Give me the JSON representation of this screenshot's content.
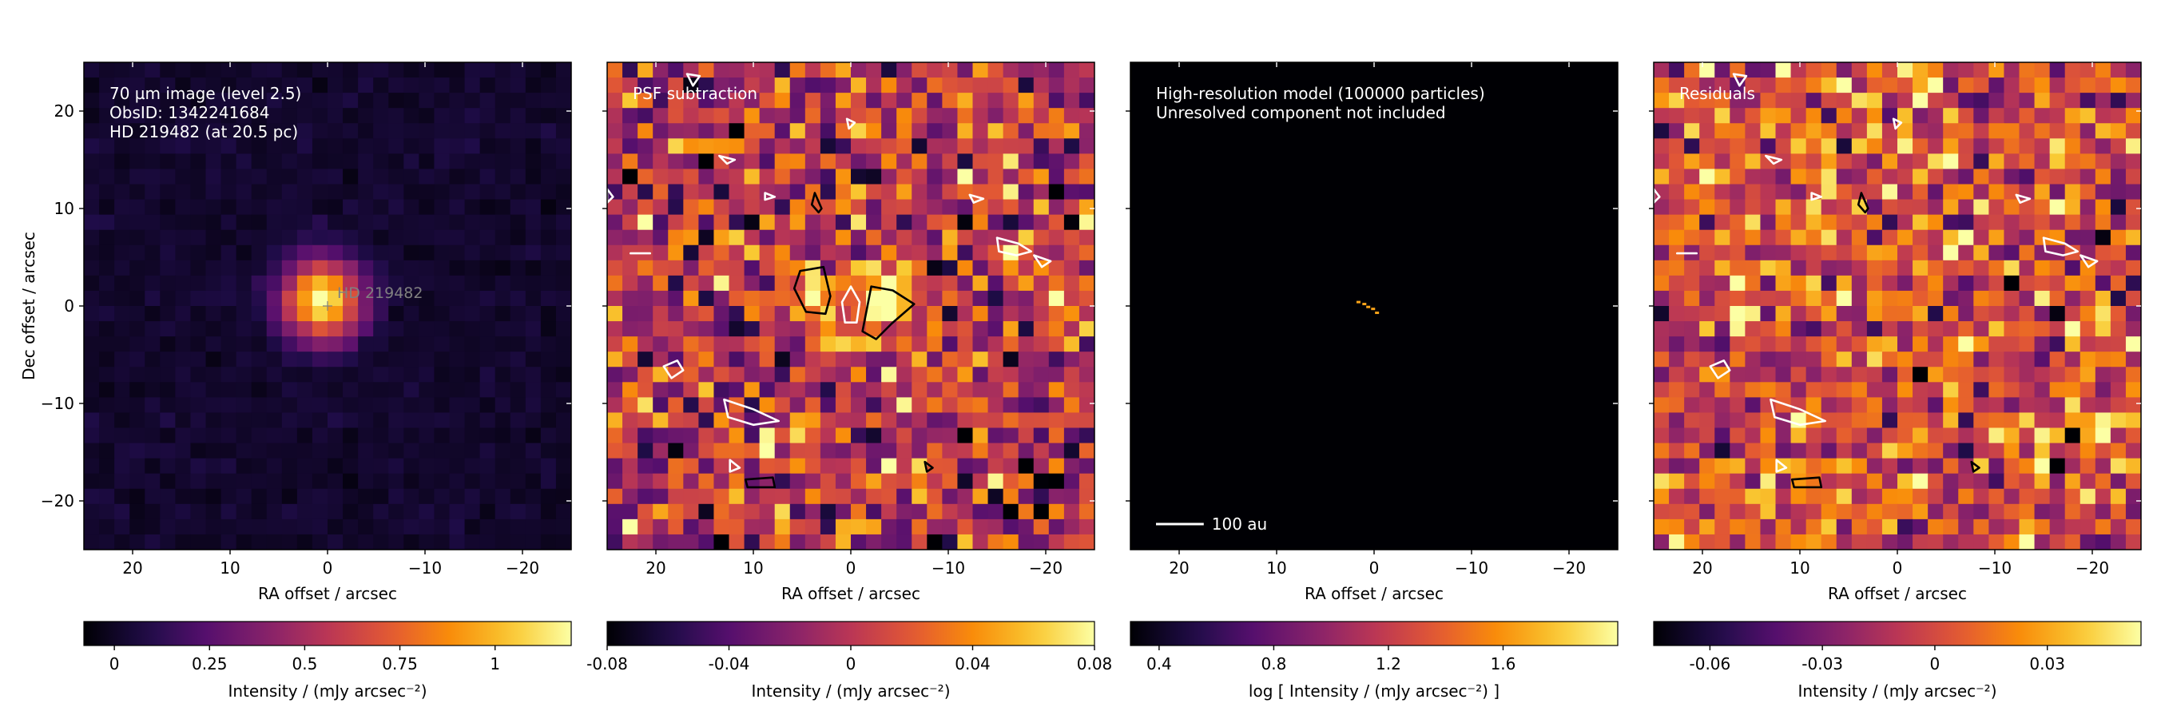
{
  "figure": {
    "background": "#ffffff",
    "colormap": "inferno",
    "colors": {
      "axis": "#000000",
      "annotation_text": "#ffffff",
      "star_label": "#808080"
    }
  },
  "chart_data": [
    {
      "type": "heatmap",
      "panel": "observation",
      "annotation_lines": [
        "70 µm image (level 2.5)",
        "ObsID: 1342241684",
        "HD 219482 (at 20.5 pc)"
      ],
      "star_marker": {
        "label": "HD 219482",
        "x": 0,
        "y": 0
      },
      "xlabel": "RA offset / arcsec",
      "ylabel": "Dec offset / arcsec",
      "xlim": [
        25,
        -25
      ],
      "ylim": [
        -25,
        25
      ],
      "xticks": [
        20,
        10,
        0,
        -10,
        -20
      ],
      "xtick_labels": [
        "20",
        "10",
        "0",
        "−10",
        "−20"
      ],
      "yticks": [
        20,
        10,
        0,
        -10,
        -20
      ],
      "ytick_labels": [
        "20",
        "10",
        "0",
        "−10",
        "−20"
      ],
      "grid": false,
      "pixel_size_arcsec": 1.6,
      "image_model": {
        "kind": "psf_gaussian",
        "peak": 1.15,
        "sigma_arcsec": 2.9,
        "noise": 0.025,
        "background": 0.02
      },
      "colorbar": {
        "orientation": "horizontal",
        "min": -0.08,
        "max": 1.2,
        "ticks": [
          0,
          0.25,
          0.5,
          0.75,
          1
        ],
        "tick_labels": [
          "0",
          "0.25",
          "0.5",
          "0.75",
          "1"
        ],
        "label": "Intensity / (mJy arcsec⁻²)"
      }
    },
    {
      "type": "heatmap",
      "panel": "psf_subtraction",
      "annotation_lines": [
        "PSF subtraction"
      ],
      "xlabel": "RA offset / arcsec",
      "xlim": [
        25,
        -25
      ],
      "ylim": [
        -25,
        25
      ],
      "xticks": [
        20,
        10,
        0,
        -10,
        -20
      ],
      "xtick_labels": [
        "20",
        "10",
        "0",
        "−10",
        "−20"
      ],
      "yticks": [
        20,
        10,
        0,
        -10,
        -20
      ],
      "grid": false,
      "pixel_size_arcsec": 1.6,
      "image_model": {
        "kind": "noise",
        "sigma": 0.032,
        "mean": 0.0,
        "bright_blobs": [
          {
            "x": 3,
            "y": 1,
            "amp": 0.09,
            "r": 2.2
          },
          {
            "x": -3.5,
            "y": -0.5,
            "amp": 0.09,
            "r": 2.4
          }
        ],
        "dark_hole": {
          "x": 0,
          "y": 0,
          "amp": -0.09,
          "r": 1.1
        }
      },
      "contours": [
        {
          "level": "positive",
          "color": "#000000",
          "points": [
            [
              5.2,
              3.6
            ],
            [
              2.8,
              4.0
            ],
            [
              2.1,
              1.0
            ],
            [
              2.6,
              -0.8
            ],
            [
              4.6,
              -0.6
            ],
            [
              5.8,
              1.8
            ]
          ]
        },
        {
          "level": "positive",
          "color": "#000000",
          "points": [
            [
              -2.1,
              2.0
            ],
            [
              -4.3,
              1.6
            ],
            [
              -6.5,
              0.2
            ],
            [
              -4.2,
              -1.8
            ],
            [
              -2.6,
              -3.4
            ],
            [
              -1.2,
              -2.6
            ]
          ]
        },
        {
          "level": "negative",
          "color": "#ffffff",
          "points": [
            [
              0.0,
              2.0
            ],
            [
              0.9,
              0.4
            ],
            [
              0.6,
              -1.7
            ],
            [
              -0.6,
              -1.7
            ],
            [
              -0.9,
              0.4
            ]
          ]
        },
        {
          "level": "negative",
          "color": "#ffffff",
          "points": [
            [
              16.8,
              23.8
            ],
            [
              15.5,
              23.6
            ],
            [
              16.2,
              22.6
            ]
          ]
        },
        {
          "level": "negative",
          "color": "#ffffff",
          "points": [
            [
              -15.0,
              7.0
            ],
            [
              -17.2,
              6.4
            ],
            [
              -18.5,
              5.6
            ],
            [
              -17.0,
              5.2
            ],
            [
              -15.2,
              5.6
            ]
          ]
        },
        {
          "level": "negative",
          "color": "#ffffff",
          "points": [
            [
              -18.8,
              5.2
            ],
            [
              -20.5,
              4.6
            ],
            [
              -19.6,
              4.0
            ]
          ]
        },
        {
          "level": "negative",
          "color": "#ffffff",
          "points": [
            [
              13.0,
              -9.6
            ],
            [
              10.0,
              -10.6
            ],
            [
              7.4,
              -11.8
            ],
            [
              10.0,
              -12.2
            ],
            [
              12.6,
              -11.4
            ]
          ]
        },
        {
          "level": "negative",
          "color": "#ffffff",
          "points": [
            [
              19.2,
              -6.2
            ],
            [
              17.8,
              -5.6
            ],
            [
              17.2,
              -6.6
            ],
            [
              18.4,
              -7.4
            ]
          ]
        },
        {
          "level": "positive",
          "color": "#000000",
          "points": [
            [
              10.8,
              -17.8
            ],
            [
              8.0,
              -17.6
            ],
            [
              7.8,
              -18.6
            ],
            [
              10.6,
              -18.6
            ]
          ]
        },
        {
          "level": "positive",
          "color": "#000000",
          "points": [
            [
              3.7,
              11.6
            ],
            [
              3.0,
              10.0
            ],
            [
              3.3,
              9.6
            ],
            [
              4.0,
              10.4
            ]
          ]
        },
        {
          "level": "negative",
          "color": "#ffffff",
          "points": [
            [
              13.5,
              15.4
            ],
            [
              11.9,
              15.0
            ],
            [
              12.7,
              14.6
            ]
          ]
        },
        {
          "level": "negative",
          "color": "#ffffff",
          "points": [
            [
              0.4,
              19.2
            ],
            [
              -0.4,
              18.8
            ],
            [
              0.2,
              18.2
            ]
          ]
        },
        {
          "level": "negative",
          "color": "#ffffff",
          "points": [
            [
              8.8,
              11.6
            ],
            [
              7.8,
              11.2
            ],
            [
              8.8,
              10.9
            ]
          ]
        },
        {
          "level": "negative",
          "color": "#ffffff",
          "points": [
            [
              -12.2,
              11.4
            ],
            [
              -13.6,
              11.0
            ],
            [
              -12.6,
              10.6
            ]
          ]
        },
        {
          "level": "negative",
          "color": "#ffffff",
          "points": [
            [
              22.6,
              5.4
            ],
            [
              20.6,
              5.4
            ]
          ]
        },
        {
          "level": "negative",
          "color": "#ffffff",
          "points": [
            [
              25.0,
              12.0
            ],
            [
              24.4,
              11.2
            ],
            [
              25.0,
              10.6
            ]
          ]
        },
        {
          "level": "negative",
          "color": "#ffffff",
          "points": [
            [
              12.4,
              -15.8
            ],
            [
              11.4,
              -16.6
            ],
            [
              12.4,
              -17.0
            ]
          ]
        },
        {
          "level": "positive",
          "color": "#000000",
          "points": [
            [
              -7.6,
              -16.0
            ],
            [
              -8.4,
              -16.6
            ],
            [
              -7.8,
              -17.0
            ]
          ]
        }
      ],
      "colorbar": {
        "orientation": "horizontal",
        "min": -0.08,
        "max": 0.08,
        "ticks": [
          -0.08,
          -0.04,
          0,
          0.04,
          0.08
        ],
        "tick_labels": [
          "-0.08",
          "-0.04",
          "0",
          "0.04",
          "0.08"
        ],
        "label": "Intensity / (mJy arcsec⁻²)"
      }
    },
    {
      "type": "heatmap",
      "panel": "model",
      "annotation_lines": [
        "High-resolution model (100000 particles)",
        "Unresolved component not included"
      ],
      "scale_bar": {
        "label": "100 au",
        "length_arcsec": 4.9
      },
      "xlabel": "RA offset / arcsec",
      "xlim": [
        25,
        -25
      ],
      "ylim": [
        -25,
        25
      ],
      "xticks": [
        20,
        10,
        0,
        -10,
        -20
      ],
      "xtick_labels": [
        "20",
        "10",
        "0",
        "−10",
        "−20"
      ],
      "yticks": [
        20,
        10,
        0,
        -10,
        -20
      ],
      "grid": false,
      "model_emission": [
        {
          "x": 1.6,
          "y": 0.4
        },
        {
          "x": 1.0,
          "y": 0.2
        },
        {
          "x": 0.6,
          "y": -0.1
        },
        {
          "x": 0.1,
          "y": -0.3
        },
        {
          "x": -0.3,
          "y": -0.7
        }
      ],
      "colorbar": {
        "orientation": "horizontal",
        "min": 0.3,
        "max": 2.0,
        "ticks": [
          0.4,
          0.8,
          1.2,
          1.6
        ],
        "tick_labels": [
          "0.4",
          "0.8",
          "1.2",
          "1.6"
        ],
        "label": "log [ Intensity / (mJy arcsec⁻²) ]"
      }
    },
    {
      "type": "heatmap",
      "panel": "residuals",
      "annotation_lines": [
        "Residuals"
      ],
      "xlabel": "RA offset / arcsec",
      "xlim": [
        25,
        -25
      ],
      "ylim": [
        -25,
        25
      ],
      "xticks": [
        20,
        10,
        0,
        -10,
        -20
      ],
      "xtick_labels": [
        "20",
        "10",
        "0",
        "−10",
        "−20"
      ],
      "yticks": [
        20,
        10,
        0,
        -10,
        -20
      ],
      "grid": false,
      "pixel_size_arcsec": 1.6,
      "image_model": {
        "kind": "noise",
        "sigma": 0.026,
        "mean": 0.0
      },
      "contours": [
        {
          "level": "negative",
          "color": "#ffffff",
          "points": [
            [
              16.8,
              23.8
            ],
            [
              15.5,
              23.6
            ],
            [
              16.2,
              22.6
            ]
          ]
        },
        {
          "level": "negative",
          "color": "#ffffff",
          "points": [
            [
              -15.0,
              7.0
            ],
            [
              -17.2,
              6.4
            ],
            [
              -18.5,
              5.6
            ],
            [
              -17.0,
              5.2
            ],
            [
              -15.2,
              5.6
            ]
          ]
        },
        {
          "level": "negative",
          "color": "#ffffff",
          "points": [
            [
              -18.8,
              5.2
            ],
            [
              -20.5,
              4.6
            ],
            [
              -19.6,
              4.0
            ]
          ]
        },
        {
          "level": "negative",
          "color": "#ffffff",
          "points": [
            [
              13.0,
              -9.6
            ],
            [
              10.0,
              -10.6
            ],
            [
              7.4,
              -11.8
            ],
            [
              10.0,
              -12.2
            ],
            [
              12.6,
              -11.4
            ]
          ]
        },
        {
          "level": "negative",
          "color": "#ffffff",
          "points": [
            [
              19.2,
              -6.2
            ],
            [
              17.8,
              -5.6
            ],
            [
              17.2,
              -6.6
            ],
            [
              18.4,
              -7.4
            ]
          ]
        },
        {
          "level": "positive",
          "color": "#000000",
          "points": [
            [
              10.8,
              -17.8
            ],
            [
              8.0,
              -17.6
            ],
            [
              7.8,
              -18.6
            ],
            [
              10.6,
              -18.6
            ]
          ]
        },
        {
          "level": "positive",
          "color": "#000000",
          "points": [
            [
              3.7,
              11.6
            ],
            [
              3.0,
              10.0
            ],
            [
              3.3,
              9.6
            ],
            [
              4.0,
              10.4
            ]
          ]
        },
        {
          "level": "negative",
          "color": "#ffffff",
          "points": [
            [
              13.5,
              15.4
            ],
            [
              11.9,
              15.0
            ],
            [
              12.7,
              14.6
            ]
          ]
        },
        {
          "level": "negative",
          "color": "#ffffff",
          "points": [
            [
              0.4,
              19.2
            ],
            [
              -0.4,
              18.8
            ],
            [
              0.2,
              18.2
            ]
          ]
        },
        {
          "level": "negative",
          "color": "#ffffff",
          "points": [
            [
              8.8,
              11.6
            ],
            [
              7.8,
              11.2
            ],
            [
              8.8,
              10.9
            ]
          ]
        },
        {
          "level": "negative",
          "color": "#ffffff",
          "points": [
            [
              -12.2,
              11.4
            ],
            [
              -13.6,
              11.0
            ],
            [
              -12.6,
              10.6
            ]
          ]
        },
        {
          "level": "negative",
          "color": "#ffffff",
          "points": [
            [
              22.6,
              5.4
            ],
            [
              20.6,
              5.4
            ]
          ]
        },
        {
          "level": "negative",
          "color": "#ffffff",
          "points": [
            [
              25.0,
              12.0
            ],
            [
              24.4,
              11.2
            ],
            [
              25.0,
              10.6
            ]
          ]
        },
        {
          "level": "negative",
          "color": "#ffffff",
          "points": [
            [
              12.4,
              -15.8
            ],
            [
              11.4,
              -16.6
            ],
            [
              12.4,
              -17.0
            ]
          ]
        },
        {
          "level": "positive",
          "color": "#000000",
          "points": [
            [
              -7.6,
              -16.0
            ],
            [
              -8.4,
              -16.6
            ],
            [
              -7.8,
              -17.0
            ]
          ]
        }
      ],
      "colorbar": {
        "orientation": "horizontal",
        "min": -0.075,
        "max": 0.055,
        "ticks": [
          -0.06,
          -0.03,
          0,
          0.03
        ],
        "tick_labels": [
          "-0.06",
          "-0.03",
          "0",
          "0.03"
        ],
        "label": "Intensity / (mJy arcsec⁻²)"
      }
    }
  ]
}
